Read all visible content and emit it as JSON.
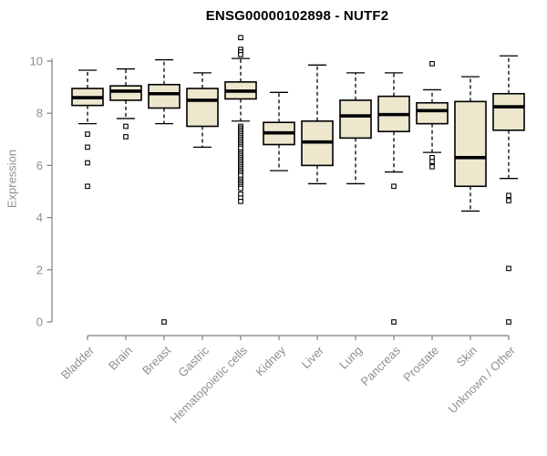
{
  "chart_data": {
    "type": "boxplot",
    "title": "ENSG00000102898 - NUTF2",
    "xlabel": "",
    "ylabel": "Expression",
    "y_ticks": [
      0,
      2,
      4,
      6,
      8,
      10
    ],
    "ylim": [
      0,
      11
    ],
    "grid": false,
    "legend": "none",
    "colors": {
      "box_fill": "#EDE7CE",
      "box_border": "#000000",
      "median": "#000000",
      "axis": "#7F7F7F",
      "tick_label": "#8F8F8F",
      "title": "#000000"
    },
    "categories": [
      "Bladder",
      "Brain",
      "Breast",
      "Gastric",
      "Hematopoietic cells",
      "Kidney",
      "Liver",
      "Lung",
      "Pancreas",
      "Prostate",
      "Skin",
      "Unknown / Other"
    ],
    "series": [
      {
        "name": "Bladder",
        "whisker_low": 7.6,
        "q1": 8.3,
        "median": 8.6,
        "q3": 8.95,
        "whisker_high": 9.65,
        "outliers": [
          7.2,
          6.7,
          6.1,
          5.2
        ]
      },
      {
        "name": "Brain",
        "whisker_low": 7.8,
        "q1": 8.5,
        "median": 8.85,
        "q3": 9.05,
        "whisker_high": 9.7,
        "outliers": [
          7.5,
          7.1
        ]
      },
      {
        "name": "Breast",
        "whisker_low": 7.6,
        "q1": 8.2,
        "median": 8.75,
        "q3": 9.1,
        "whisker_high": 10.05,
        "outliers": [
          0
        ]
      },
      {
        "name": "Gastric",
        "whisker_low": 6.7,
        "q1": 7.5,
        "median": 8.5,
        "q3": 8.95,
        "whisker_high": 9.55,
        "outliers": []
      },
      {
        "name": "Hematopoietic cells",
        "whisker_low": 7.7,
        "q1": 8.55,
        "median": 8.85,
        "q3": 9.2,
        "whisker_high": 10.1,
        "outliers": [
          10.9,
          10.45,
          10.35,
          10.25,
          7.5,
          7.43,
          7.36,
          7.29,
          7.22,
          7.15,
          7.08,
          7.01,
          6.94,
          6.87,
          6.8,
          6.73,
          6.66,
          6.52,
          6.45,
          6.38,
          6.31,
          6.24,
          6.17,
          6.1,
          6.03,
          5.96,
          5.89,
          5.82,
          5.75,
          5.68,
          5.61,
          5.47,
          5.4,
          5.33,
          5.26,
          5.19,
          5.12,
          4.9,
          4.75,
          4.62
        ]
      },
      {
        "name": "Kidney",
        "whisker_low": 5.8,
        "q1": 6.8,
        "median": 7.25,
        "q3": 7.65,
        "whisker_high": 8.8,
        "outliers": []
      },
      {
        "name": "Liver",
        "whisker_low": 5.3,
        "q1": 6.0,
        "median": 6.9,
        "q3": 7.7,
        "whisker_high": 9.85,
        "outliers": []
      },
      {
        "name": "Lung",
        "whisker_low": 5.3,
        "q1": 7.05,
        "median": 7.9,
        "q3": 8.5,
        "whisker_high": 9.55,
        "outliers": []
      },
      {
        "name": "Pancreas",
        "whisker_low": 5.75,
        "q1": 7.3,
        "median": 7.95,
        "q3": 8.65,
        "whisker_high": 9.55,
        "outliers": [
          5.2,
          0
        ]
      },
      {
        "name": "Prostate",
        "whisker_low": 6.5,
        "q1": 7.6,
        "median": 8.1,
        "q3": 8.4,
        "whisker_high": 8.9,
        "outliers": [
          9.9,
          6.3,
          6.15,
          5.95
        ]
      },
      {
        "name": "Skin",
        "whisker_low": 4.25,
        "q1": 5.2,
        "median": 6.3,
        "q3": 8.45,
        "whisker_high": 9.4,
        "outliers": []
      },
      {
        "name": "Unknown / Other",
        "whisker_low": 5.5,
        "q1": 7.35,
        "median": 8.25,
        "q3": 8.75,
        "whisker_high": 10.2,
        "outliers": [
          4.85,
          4.65,
          2.05,
          0
        ]
      }
    ]
  }
}
